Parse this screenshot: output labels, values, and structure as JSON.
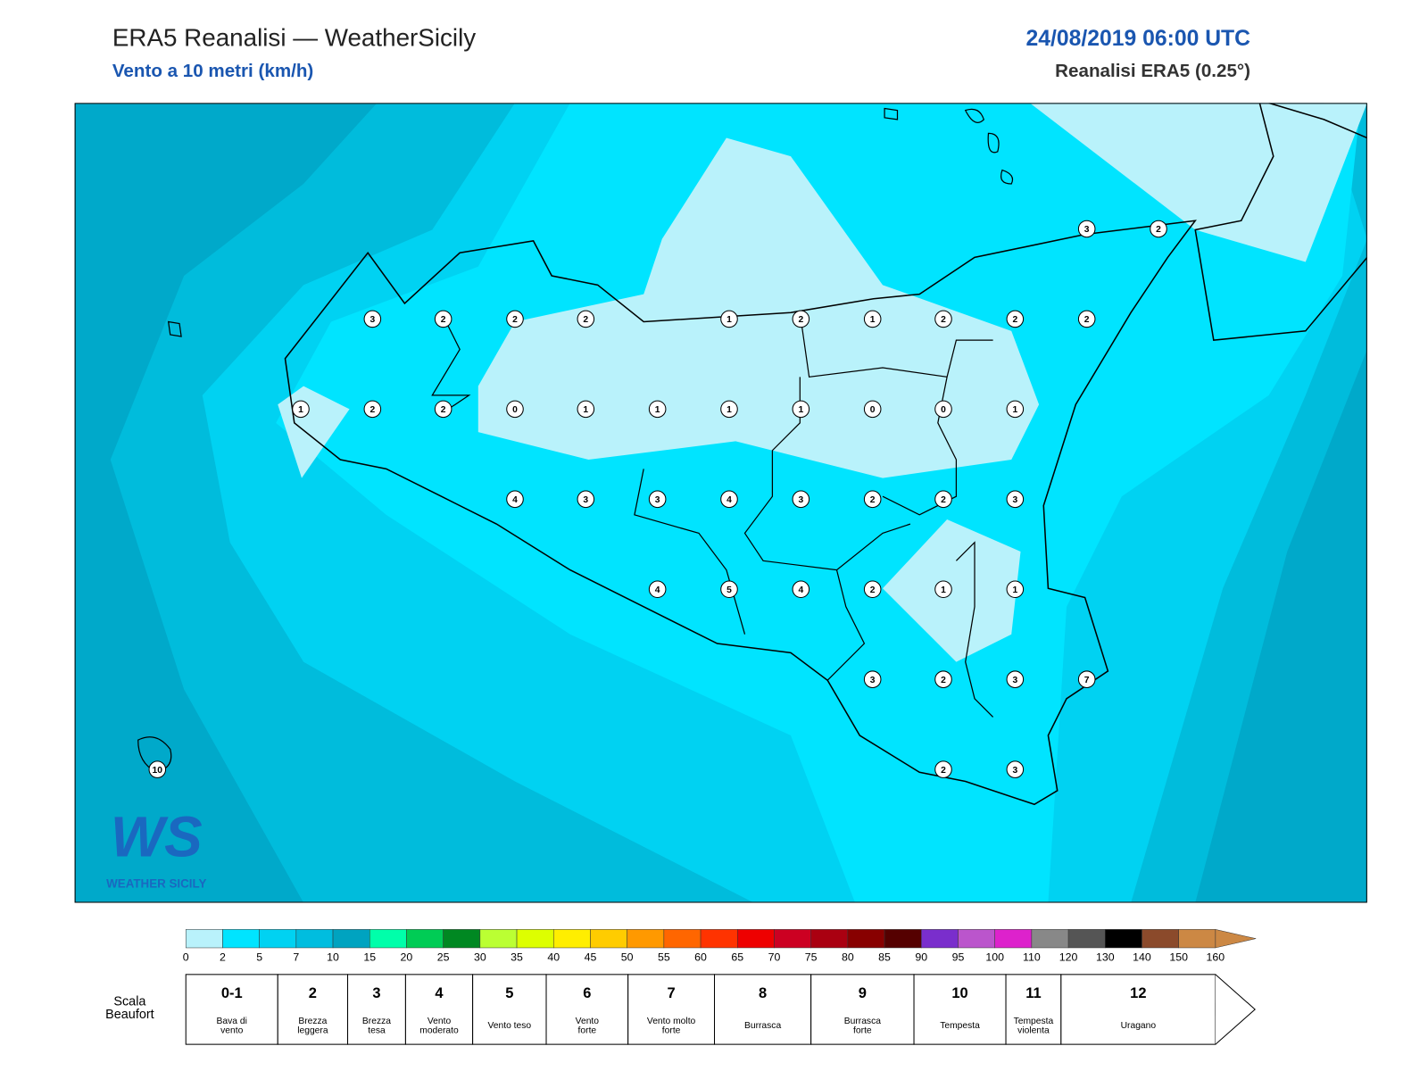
{
  "header": {
    "title": "ERA5 Reanalisi — WeatherSicily",
    "subtitle": "Vento a 10 metri (km/h)",
    "datetime": "24/08/2019 06:00 UTC",
    "source": "Reanalisi ERA5 (0.25°)"
  },
  "map": {
    "stations": [
      3,
      2,
      2,
      2,
      1,
      2,
      1,
      2,
      2,
      2,
      3,
      2,
      1,
      2,
      2,
      0,
      1,
      1,
      1,
      1,
      0,
      0,
      1,
      4,
      3,
      3,
      4,
      3,
      2,
      2,
      3,
      4,
      5,
      4,
      2,
      1,
      1,
      3,
      2,
      3,
      7,
      10,
      2,
      3
    ],
    "logo": {
      "mark": "WS",
      "name": "Weather Sicily"
    }
  },
  "colorbar": {
    "ticks": [
      0,
      2,
      5,
      7,
      10,
      15,
      20,
      25,
      30,
      35,
      40,
      45,
      50,
      55,
      60,
      65,
      70,
      75,
      80,
      85,
      90,
      95,
      100,
      110,
      120,
      130,
      140,
      150,
      160
    ],
    "colors": [
      "#b9f2fb",
      "#00e4ff",
      "#00d2f2",
      "#00bddf",
      "#00a3c0",
      "#00ffaa",
      "#00cc55",
      "#008822",
      "#bbff33",
      "#ddff00",
      "#ffee00",
      "#ffcc00",
      "#ff9900",
      "#ff6600",
      "#ff3300",
      "#ee0000",
      "#cc0022",
      "#aa0011",
      "#880000",
      "#550000",
      "#7a2ecc",
      "#bb55cc",
      "#dd22cc",
      "#888888",
      "#555555",
      "#000000",
      "#8b4a2b",
      "#cc8844"
    ]
  },
  "beaufort": {
    "label": [
      "Scala",
      "Beaufort"
    ],
    "levels": [
      {
        "number": "0-1",
        "desc": [
          "Bava di",
          "vento"
        ]
      },
      {
        "number": 2,
        "desc": [
          "Brezza",
          "leggera"
        ]
      },
      {
        "number": 3,
        "desc": [
          "Brezza",
          "tesa"
        ]
      },
      {
        "number": 4,
        "desc": [
          "Vento",
          "moderato"
        ]
      },
      {
        "number": 5,
        "desc": [
          "Vento teso"
        ]
      },
      {
        "number": 6,
        "desc": [
          "Vento",
          "forte"
        ]
      },
      {
        "number": 7,
        "desc": [
          "Vento molto",
          "forte"
        ]
      },
      {
        "number": 8,
        "desc": [
          "Burrasca"
        ]
      },
      {
        "number": 9,
        "desc": [
          "Burrasca",
          "forte"
        ]
      },
      {
        "number": 10,
        "desc": [
          "Tempesta"
        ]
      },
      {
        "number": 11,
        "desc": [
          "Tempesta",
          "violenta"
        ]
      },
      {
        "number": 12,
        "desc": [
          "Uragano"
        ]
      }
    ]
  }
}
